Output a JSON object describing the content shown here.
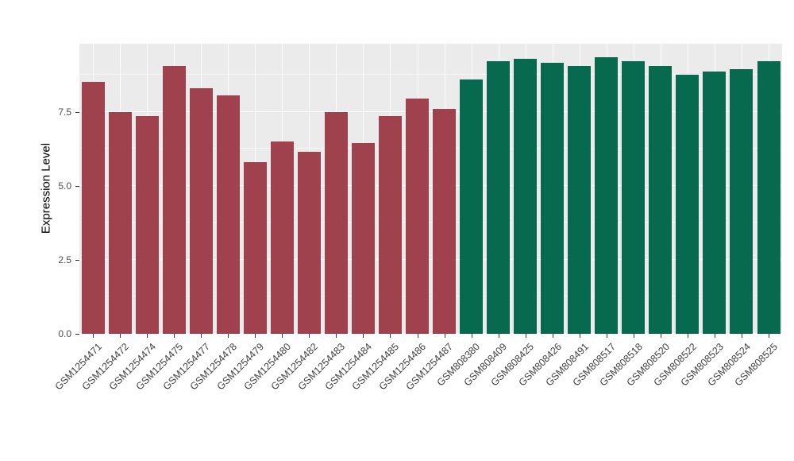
{
  "figure": {
    "background": "#FFFFFF",
    "panel_background": "#EBEBEB",
    "grid_color": "#FFFFFF"
  },
  "chart_data": {
    "type": "bar",
    "title": "",
    "xlabel": "",
    "ylabel": "Expression Level",
    "ylim": [
      0,
      9.8
    ],
    "yticks": [
      0,
      2.5,
      5,
      7.5
    ],
    "ytick_labels": [
      "0.0",
      "2.5",
      "5.0",
      "7.5"
    ],
    "grid": true,
    "legend": "none",
    "group_colors": {
      "group1": "#A0424E",
      "group2": "#07694D"
    },
    "categories": [
      "GSM1254471",
      "GSM1254472",
      "GSM1254474",
      "GSM1254475",
      "GSM1254477",
      "GSM1254478",
      "GSM1254479",
      "GSM1254480",
      "GSM1254482",
      "GSM1254483",
      "GSM1254484",
      "GSM1254485",
      "GSM1254486",
      "GSM1254487",
      "GSM808380",
      "GSM808409",
      "GSM808425",
      "GSM808426",
      "GSM808491",
      "GSM808517",
      "GSM808518",
      "GSM808520",
      "GSM808522",
      "GSM808523",
      "GSM808524",
      "GSM808525"
    ],
    "values": [
      8.5,
      7.5,
      7.35,
      9.05,
      8.3,
      8.05,
      5.8,
      6.5,
      6.15,
      7.5,
      6.45,
      7.35,
      7.95,
      7.6,
      8.6,
      9.2,
      9.3,
      9.15,
      9.05,
      9.35,
      9.2,
      9.05,
      8.75,
      8.85,
      8.95,
      9.2
    ],
    "bar_groups": [
      "group1",
      "group1",
      "group1",
      "group1",
      "group1",
      "group1",
      "group1",
      "group1",
      "group1",
      "group1",
      "group1",
      "group1",
      "group1",
      "group1",
      "group2",
      "group2",
      "group2",
      "group2",
      "group2",
      "group2",
      "group2",
      "group2",
      "group2",
      "group2",
      "group2",
      "group2"
    ]
  }
}
